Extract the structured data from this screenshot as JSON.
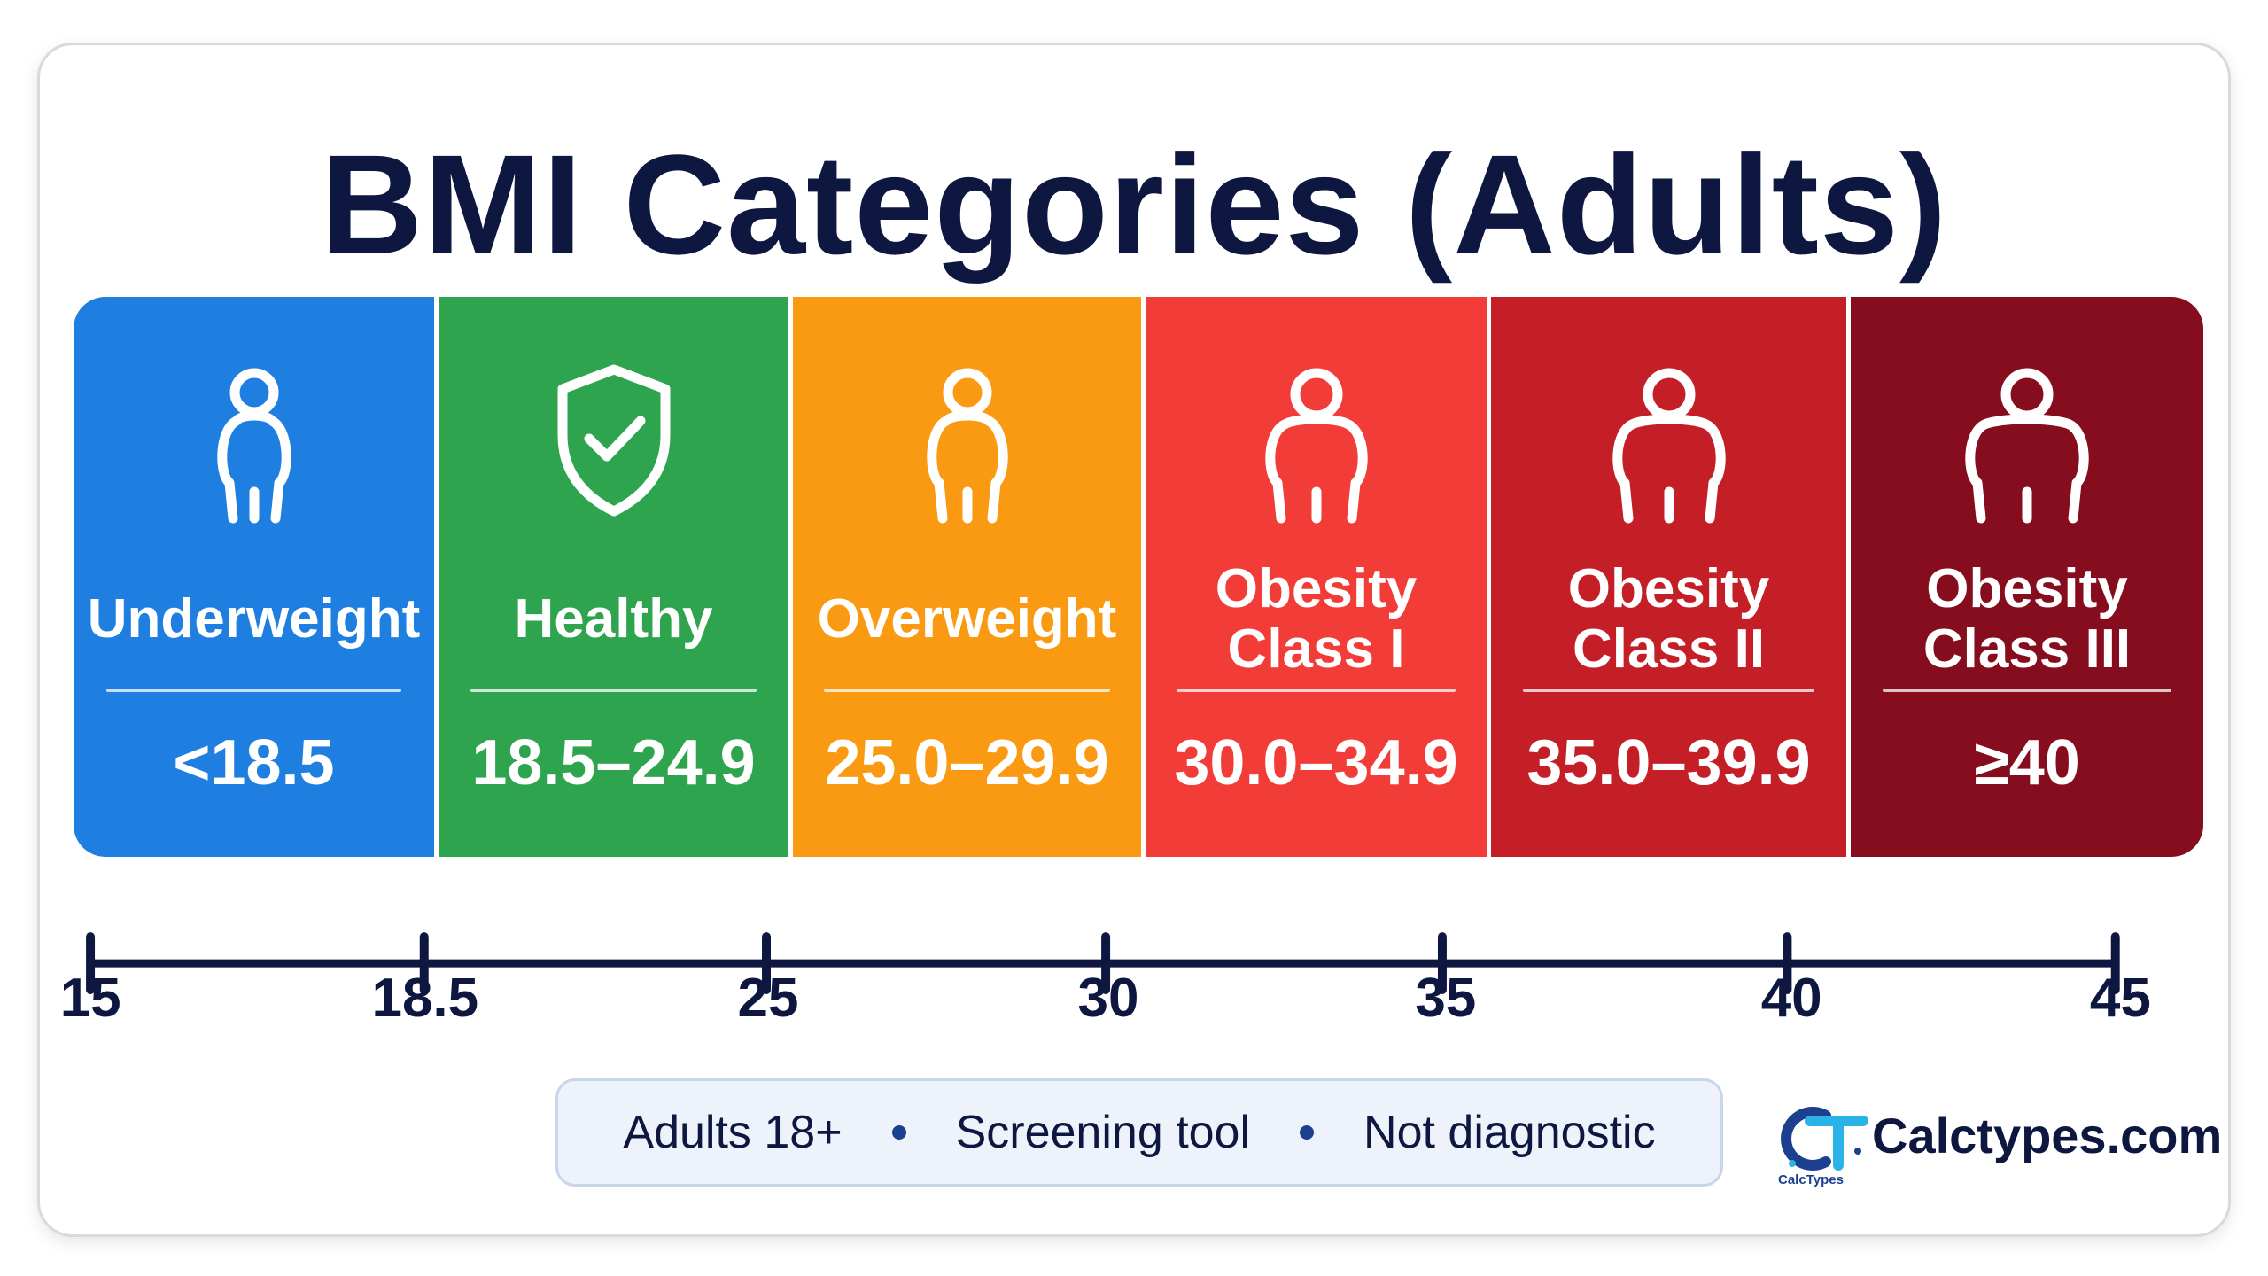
{
  "title": "BMI Categories (Adults)",
  "categories": [
    {
      "label_lines": [
        "Underweight"
      ],
      "range": "<18.5",
      "color": "#1f7fe0",
      "icon": "person-slim-icon"
    },
    {
      "label_lines": [
        "Healthy"
      ],
      "range": "18.5–24.9",
      "color": "#2ea44f",
      "icon": "shield-check-icon"
    },
    {
      "label_lines": [
        "Overweight"
      ],
      "range": "25.0–29.9",
      "color": "#f99a12",
      "icon": "person-icon"
    },
    {
      "label_lines": [
        "Obesity",
        "Class I"
      ],
      "range": "30.0–34.9",
      "color": "#f23c38",
      "icon": "person-heavy-icon"
    },
    {
      "label_lines": [
        "Obesity",
        "Class II"
      ],
      "range": "35.0–39.9",
      "color": "#c41e27",
      "icon": "person-heavier-icon"
    },
    {
      "label_lines": [
        "Obesity",
        "Class III"
      ],
      "range": "≥40",
      "color": "#850d1e",
      "icon": "person-heaviest-icon"
    }
  ],
  "axis": {
    "ticks": [
      15,
      18.5,
      25,
      30,
      35,
      40,
      45
    ],
    "tick_labels": [
      "15",
      "18.5",
      "25",
      "30",
      "35",
      "40",
      "45"
    ],
    "color": "#0e1740"
  },
  "notes": [
    "Adults 18+",
    "Screening tool",
    "Not diagnostic"
  ],
  "brand": {
    "name": "Calctypes.com",
    "logo_mark": "CT",
    "logo_caption": "CalcTypes"
  }
}
